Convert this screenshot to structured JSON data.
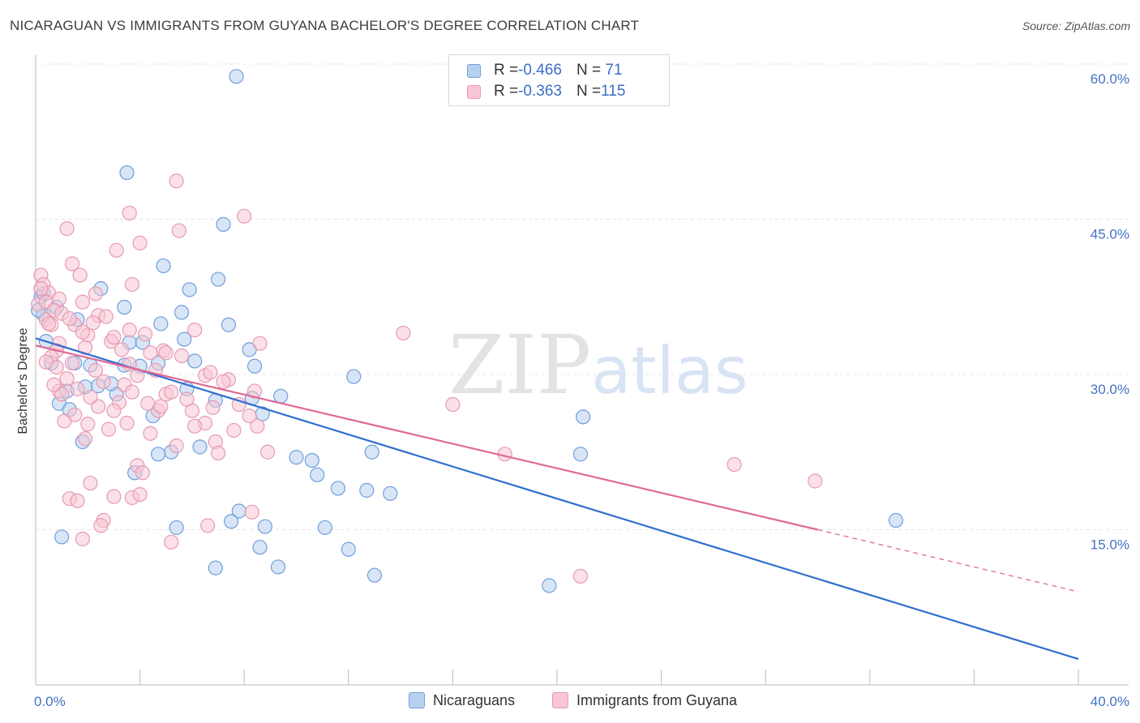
{
  "title": "NICARAGUAN VS IMMIGRANTS FROM GUYANA BACHELOR'S DEGREE CORRELATION CHART",
  "source": "Source: ZipAtlas.com",
  "watermark": {
    "zip": "ZIP",
    "atlas": "atlas"
  },
  "legend": {
    "rows": [
      {
        "r_label": "R = ",
        "r_value": "-0.466",
        "n_label": "N = ",
        "n_value": " 71",
        "fill": "#b8d0f0",
        "stroke": "#6f9fdc"
      },
      {
        "r_label": "R = ",
        "r_value": "-0.363",
        "n_label": "N = ",
        "n_value": "115",
        "fill": "#f8c6d4",
        "stroke": "#e79ab2"
      }
    ]
  },
  "bottom_legend": [
    {
      "label": "Nicaraguans",
      "fill": "#b8d0f0",
      "stroke": "#6f9fdc"
    },
    {
      "label": "Immigrants from Guyana",
      "fill": "#f8c6d4",
      "stroke": "#e79ab2"
    }
  ],
  "chart_data": {
    "type": "scatter",
    "xlabel": "",
    "ylabel": "Bachelor's Degree",
    "xlim": [
      0,
      40
    ],
    "ylim": [
      0,
      60
    ],
    "x_ticks": [
      0,
      40
    ],
    "x_tick_labels": [
      "0.0%",
      "40.0%"
    ],
    "y_ticks": [
      15,
      30,
      45,
      60
    ],
    "y_tick_labels": [
      "15.0%",
      "30.0%",
      "45.0%",
      "60.0%"
    ],
    "grid": true,
    "legend_position": "top-center",
    "series": [
      {
        "name": "Nicaraguans",
        "color": "#6f9fdc",
        "fill": "#b8d0f0",
        "trend": {
          "x": [
            0,
            40
          ],
          "y": [
            33.5,
            2.5
          ],
          "color": "#2f6fcf"
        },
        "points": [
          [
            7.7,
            58.8
          ],
          [
            3.5,
            49.5
          ],
          [
            7.2,
            44.5
          ],
          [
            4.9,
            40.5
          ],
          [
            7.0,
            39.2
          ],
          [
            5.9,
            38.2
          ],
          [
            2.5,
            38.3
          ],
          [
            0.2,
            37.5
          ],
          [
            5.6,
            36.0
          ],
          [
            7.4,
            34.8
          ],
          [
            4.8,
            34.9
          ],
          [
            1.6,
            35.3
          ],
          [
            0.8,
            36.5
          ],
          [
            0.3,
            35.8
          ],
          [
            0.4,
            33.2
          ],
          [
            5.7,
            33.4
          ],
          [
            3.6,
            33.1
          ],
          [
            4.1,
            33.1
          ],
          [
            8.2,
            32.4
          ],
          [
            6.1,
            31.3
          ],
          [
            8.4,
            30.8
          ],
          [
            3.4,
            30.9
          ],
          [
            1.5,
            31.1
          ],
          [
            2.1,
            30.9
          ],
          [
            4.0,
            30.8
          ],
          [
            0.6,
            31.1
          ],
          [
            12.2,
            29.8
          ],
          [
            1.9,
            28.8
          ],
          [
            2.4,
            28.9
          ],
          [
            5.8,
            28.6
          ],
          [
            1.2,
            28.4
          ],
          [
            3.1,
            28.1
          ],
          [
            2.9,
            29.1
          ],
          [
            9.4,
            27.9
          ],
          [
            6.9,
            27.5
          ],
          [
            8.3,
            27.7
          ],
          [
            0.9,
            27.2
          ],
          [
            4.5,
            26.0
          ],
          [
            8.7,
            26.2
          ],
          [
            1.3,
            26.6
          ],
          [
            21.0,
            25.9
          ],
          [
            1.8,
            23.5
          ],
          [
            6.3,
            23.0
          ],
          [
            5.2,
            22.5
          ],
          [
            4.7,
            22.3
          ],
          [
            12.9,
            22.5
          ],
          [
            10.0,
            22.0
          ],
          [
            10.6,
            21.7
          ],
          [
            20.9,
            22.3
          ],
          [
            3.8,
            20.5
          ],
          [
            10.8,
            20.3
          ],
          [
            11.6,
            19.0
          ],
          [
            12.7,
            18.8
          ],
          [
            13.6,
            18.5
          ],
          [
            7.8,
            16.8
          ],
          [
            7.5,
            15.8
          ],
          [
            5.4,
            15.2
          ],
          [
            8.8,
            15.3
          ],
          [
            11.1,
            15.2
          ],
          [
            1.0,
            14.3
          ],
          [
            8.6,
            13.3
          ],
          [
            12.0,
            13.1
          ],
          [
            6.9,
            11.3
          ],
          [
            9.3,
            11.4
          ],
          [
            13.0,
            10.6
          ],
          [
            19.7,
            9.6
          ],
          [
            33.0,
            15.9
          ],
          [
            0.3,
            37.8
          ],
          [
            0.1,
            36.2
          ],
          [
            3.4,
            36.5
          ],
          [
            4.7,
            31.1
          ]
        ]
      },
      {
        "name": "Immigrants from Guyana",
        "color": "#e79ab2",
        "fill": "#f8c6d4",
        "trend": {
          "x": [
            0,
            30.0
          ],
          "y": [
            32.8,
            15.0
          ],
          "color": "#e06a94"
        },
        "trend_dashed": {
          "x": [
            30.0,
            40
          ],
          "y": [
            15.0,
            9.0
          ]
        },
        "points": [
          [
            5.4,
            48.7
          ],
          [
            3.6,
            45.6
          ],
          [
            1.2,
            44.1
          ],
          [
            5.5,
            43.9
          ],
          [
            8.0,
            45.3
          ],
          [
            4.0,
            42.7
          ],
          [
            3.1,
            42.0
          ],
          [
            1.4,
            40.7
          ],
          [
            0.2,
            39.6
          ],
          [
            1.7,
            39.6
          ],
          [
            0.3,
            38.7
          ],
          [
            3.7,
            38.7
          ],
          [
            0.5,
            37.9
          ],
          [
            2.3,
            37.8
          ],
          [
            0.9,
            37.3
          ],
          [
            1.8,
            37.0
          ],
          [
            0.1,
            36.8
          ],
          [
            0.4,
            35.3
          ],
          [
            2.4,
            35.7
          ],
          [
            0.6,
            34.8
          ],
          [
            1.5,
            34.8
          ],
          [
            2.2,
            35.0
          ],
          [
            2.0,
            33.8
          ],
          [
            6.1,
            34.3
          ],
          [
            3.6,
            34.3
          ],
          [
            14.1,
            34.0
          ],
          [
            1.9,
            32.6
          ],
          [
            0.9,
            33.0
          ],
          [
            0.8,
            32.3
          ],
          [
            8.6,
            33.0
          ],
          [
            2.9,
            33.2
          ],
          [
            4.9,
            32.3
          ],
          [
            3.3,
            32.4
          ],
          [
            0.6,
            31.7
          ],
          [
            1.4,
            31.1
          ],
          [
            3.6,
            31.0
          ],
          [
            0.8,
            30.7
          ],
          [
            5.0,
            32.1
          ],
          [
            4.4,
            32.1
          ],
          [
            6.5,
            29.9
          ],
          [
            7.4,
            29.5
          ],
          [
            2.6,
            29.3
          ],
          [
            3.4,
            29.0
          ],
          [
            0.9,
            28.4
          ],
          [
            1.6,
            28.6
          ],
          [
            1.0,
            28.1
          ],
          [
            3.7,
            28.3
          ],
          [
            3.2,
            27.3
          ],
          [
            2.4,
            26.9
          ],
          [
            4.3,
            27.2
          ],
          [
            8.4,
            28.4
          ],
          [
            4.7,
            26.5
          ],
          [
            5.0,
            28.1
          ],
          [
            5.2,
            28.3
          ],
          [
            6.0,
            26.5
          ],
          [
            8.2,
            26.0
          ],
          [
            16.0,
            27.1
          ],
          [
            1.1,
            25.5
          ],
          [
            2.0,
            25.2
          ],
          [
            3.5,
            25.3
          ],
          [
            8.5,
            25.0
          ],
          [
            6.5,
            25.3
          ],
          [
            7.6,
            24.6
          ],
          [
            6.1,
            25.0
          ],
          [
            2.8,
            24.7
          ],
          [
            1.9,
            23.8
          ],
          [
            4.4,
            24.3
          ],
          [
            6.9,
            23.5
          ],
          [
            5.4,
            23.1
          ],
          [
            7.0,
            22.4
          ],
          [
            8.9,
            22.5
          ],
          [
            18.0,
            22.3
          ],
          [
            3.9,
            21.2
          ],
          [
            26.8,
            21.3
          ],
          [
            4.1,
            20.5
          ],
          [
            2.1,
            19.5
          ],
          [
            29.9,
            19.7
          ],
          [
            3.0,
            18.2
          ],
          [
            3.7,
            18.1
          ],
          [
            4.0,
            18.4
          ],
          [
            1.3,
            18.0
          ],
          [
            1.6,
            17.8
          ],
          [
            8.3,
            16.7
          ],
          [
            2.6,
            15.9
          ],
          [
            2.5,
            15.4
          ],
          [
            1.8,
            14.1
          ],
          [
            5.2,
            13.8
          ],
          [
            6.6,
            15.4
          ],
          [
            20.9,
            10.5
          ],
          [
            0.2,
            38.3
          ],
          [
            0.4,
            37.0
          ],
          [
            0.7,
            36.2
          ],
          [
            1.0,
            35.9
          ],
          [
            1.3,
            35.4
          ],
          [
            0.5,
            34.9
          ],
          [
            2.7,
            35.6
          ],
          [
            1.8,
            34.1
          ],
          [
            3.0,
            33.6
          ],
          [
            4.2,
            33.9
          ],
          [
            5.6,
            31.8
          ],
          [
            6.7,
            30.2
          ],
          [
            7.2,
            29.3
          ],
          [
            2.3,
            30.4
          ],
          [
            1.2,
            29.6
          ],
          [
            0.7,
            29.0
          ],
          [
            3.9,
            29.9
          ],
          [
            4.6,
            30.4
          ],
          [
            5.8,
            27.6
          ],
          [
            6.8,
            26.8
          ],
          [
            7.8,
            27.1
          ],
          [
            2.1,
            27.8
          ],
          [
            1.5,
            26.1
          ],
          [
            3.0,
            26.5
          ],
          [
            4.8,
            26.9
          ],
          [
            0.4,
            31.2
          ]
        ]
      }
    ]
  }
}
